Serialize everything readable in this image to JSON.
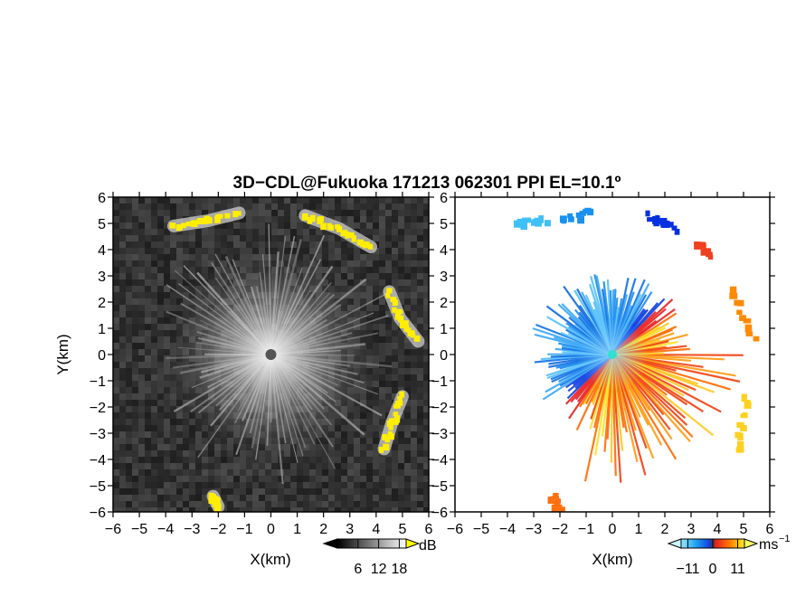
{
  "figure": {
    "title": "3D−CDL@Fukuoka 171213 062301 PPI EL=10.1º"
  },
  "chart_data": [
    {
      "type": "heatmap",
      "xlabel": "X(km)",
      "ylabel": "Y(km)",
      "xlim": [
        -6,
        6
      ],
      "ylim": [
        -6,
        6
      ],
      "xticks": [
        "−6",
        "−5",
        "−4",
        "−3",
        "−2",
        "−1",
        "0",
        "1",
        "2",
        "3",
        "4",
        "5",
        "6"
      ],
      "yticks": [
        "6",
        "5",
        "4",
        "3",
        "2",
        "1",
        "0",
        "−1",
        "−2",
        "−3",
        "−4",
        "−5",
        "−6"
      ],
      "colorbar": {
        "unit": "dB",
        "tick_labels": [
          "6",
          "12",
          "18"
        ],
        "ticks": [
          6,
          12,
          18
        ],
        "range": [
          0,
          20
        ]
      },
      "features": [
        {
          "x": [
            -3.7,
            -2.4,
            -1.2
          ],
          "y": [
            4.9,
            5.1,
            5.4
          ],
          "level": "high"
        },
        {
          "x": [
            1.3,
            2.6,
            3.8
          ],
          "y": [
            5.3,
            4.8,
            4.1
          ],
          "level": "high"
        },
        {
          "x": [
            4.5,
            4.9,
            5.6
          ],
          "y": [
            2.4,
            1.4,
            0.5
          ],
          "level": "high"
        },
        {
          "x": [
            5.0,
            4.6,
            4.3
          ],
          "y": [
            -1.6,
            -2.6,
            -3.6
          ],
          "level": "high"
        },
        {
          "x": [
            -2.2,
            -2.0
          ],
          "y": [
            -5.4,
            -5.8
          ],
          "level": "high"
        }
      ]
    },
    {
      "type": "heatmap",
      "xlabel": "X(km)",
      "xlim": [
        -6,
        6
      ],
      "ylim": [
        -6,
        6
      ],
      "xticks": [
        "−6",
        "−5",
        "−4",
        "−3",
        "−2",
        "−1",
        "0",
        "1",
        "2",
        "3",
        "4",
        "5",
        "6"
      ],
      "yticks": [
        "6",
        "5",
        "4",
        "3",
        "2",
        "1",
        "0",
        "−1",
        "−2",
        "−3",
        "−4",
        "−5",
        "−6"
      ],
      "colorbar": {
        "unit": "ms",
        "unit_exp": "−1",
        "tick_labels": [
          "−11",
          "0",
          "11"
        ],
        "ticks": [
          -11,
          0,
          11
        ],
        "range": [
          -14,
          14
        ]
      },
      "features": [
        {
          "x": [
            -3.6,
            -2.6
          ],
          "y": [
            5.0,
            5.1
          ],
          "value": -9
        },
        {
          "x": [
            -1.9,
            -0.8
          ],
          "y": [
            5.1,
            5.4
          ],
          "value": -11
        },
        {
          "x": [
            1.3,
            2.4
          ],
          "y": [
            5.3,
            4.8
          ],
          "value": -13
        },
        {
          "x": [
            3.2,
            3.7
          ],
          "y": [
            4.3,
            3.8
          ],
          "value": 11
        },
        {
          "x": [
            4.5,
            5.4
          ],
          "y": [
            2.4,
            0.6
          ],
          "value": 12
        },
        {
          "x": [
            5.1,
            4.8
          ],
          "y": [
            -1.6,
            -3.6
          ],
          "value": 6
        },
        {
          "x": [
            -2.3,
            -2.1
          ],
          "y": [
            -5.4,
            -5.8
          ],
          "value": 10
        }
      ]
    }
  ]
}
